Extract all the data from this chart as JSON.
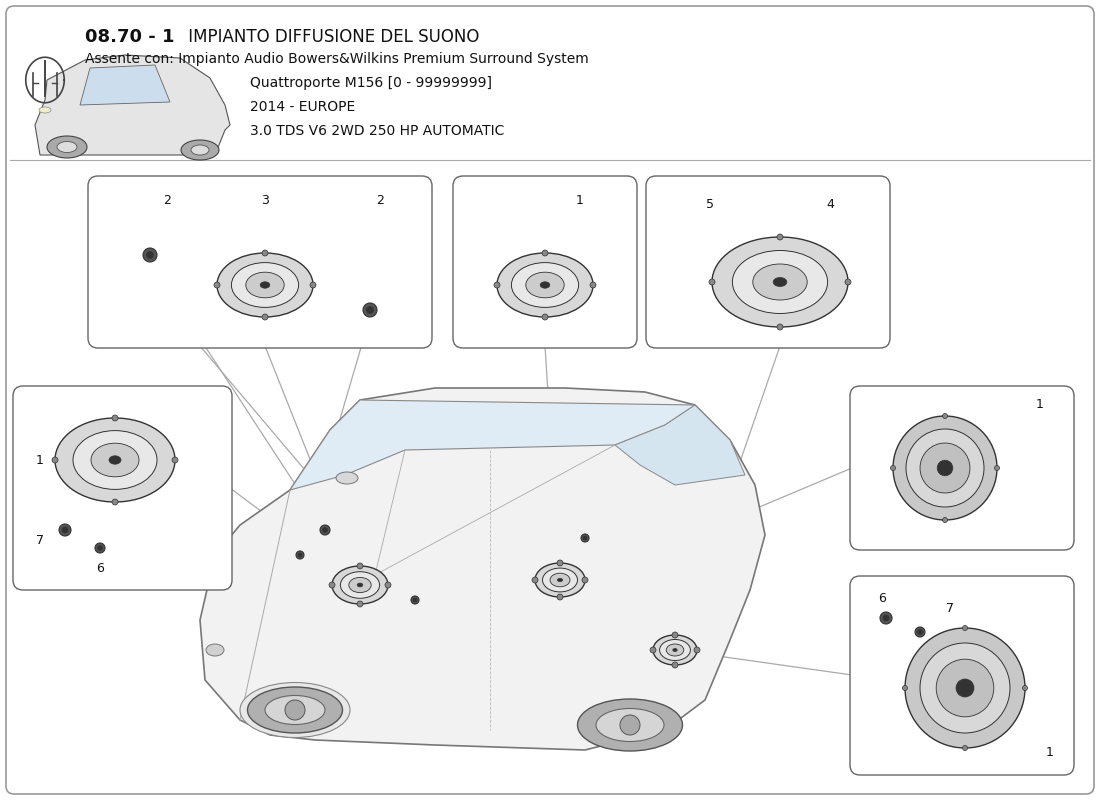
{
  "title_bold": "08.70 - 1",
  "title_rest": " IMPIANTO DIFFUSIONE DEL SUONO",
  "subtitle1": "Assente con: Impianto Audio Bowers&Wilkins Premium Surround System",
  "subtitle2": "Quattroporte M156 [0 - 99999999]",
  "subtitle3": "2014 - EUROPE",
  "subtitle4": "3.0 TDS V6 2WD 250 HP AUTOMATIC",
  "bg_color": "#ffffff",
  "border_color": "#666666",
  "text_color": "#111111",
  "line_color": "#888888",
  "fig_width": 11.0,
  "fig_height": 8.0
}
